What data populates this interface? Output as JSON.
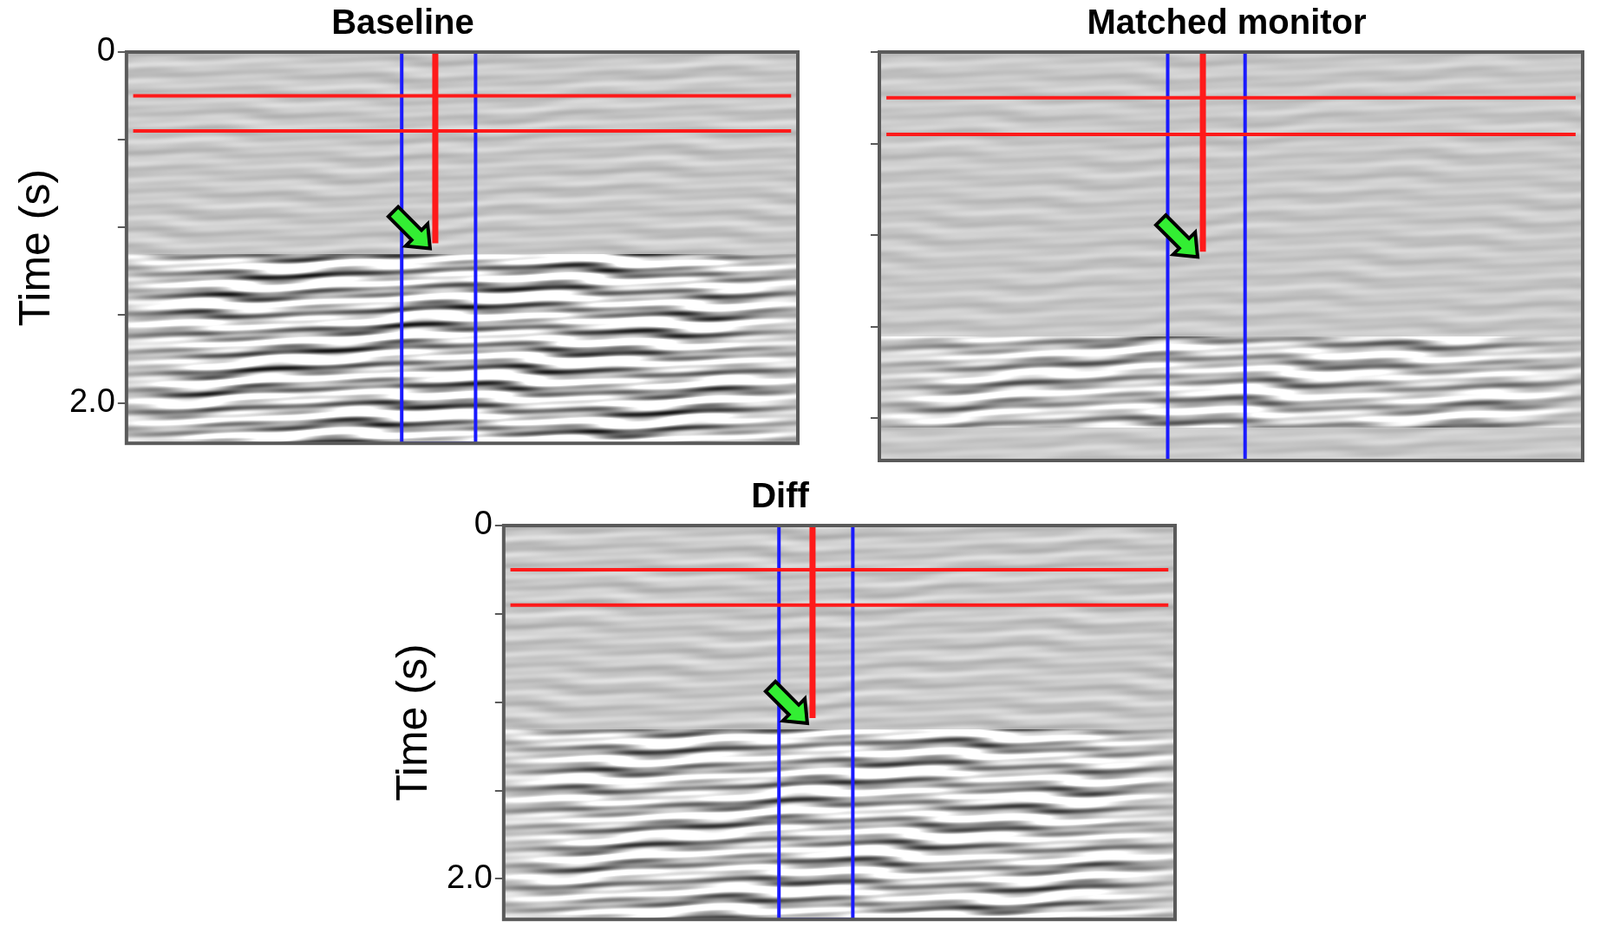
{
  "chart_data": [
    {
      "type": "image",
      "title": "Baseline",
      "y_label": "Time (s)",
      "ylim": [
        0,
        2.23
      ],
      "yticks": [
        0,
        {
          "value": 2,
          "label": "2.0"
        }
      ],
      "minor_yticks": [
        0.5,
        1.0,
        1.5
      ],
      "tick_labels": "y",
      "horizon_times": [
        0.25,
        0.45
      ],
      "marker_end_time": 1.09
    },
    {
      "type": "image",
      "title": "Matched monitor",
      "ylim": [
        0,
        2.23
      ],
      "yticks": [
        0,
        {
          "value": 2,
          "label": "2.0"
        }
      ],
      "minor_yticks": [
        0.5,
        1.0,
        1.5
      ],
      "tick_labels": false,
      "horizon_times": [
        0.25,
        0.45
      ],
      "marker_end_time": 1.09
    },
    {
      "type": "image",
      "title": "Diff",
      "y_label": "Time (s)",
      "ylim": [
        0,
        2.23
      ],
      "yticks": [
        0,
        {
          "value": 2,
          "label": "2.0"
        }
      ],
      "minor_yticks": [
        0.5,
        1.0,
        1.5
      ],
      "tick_labels": "y",
      "horizon_times": [
        0.25,
        0.45
      ],
      "marker_end_time": 1.09
    }
  ]
}
